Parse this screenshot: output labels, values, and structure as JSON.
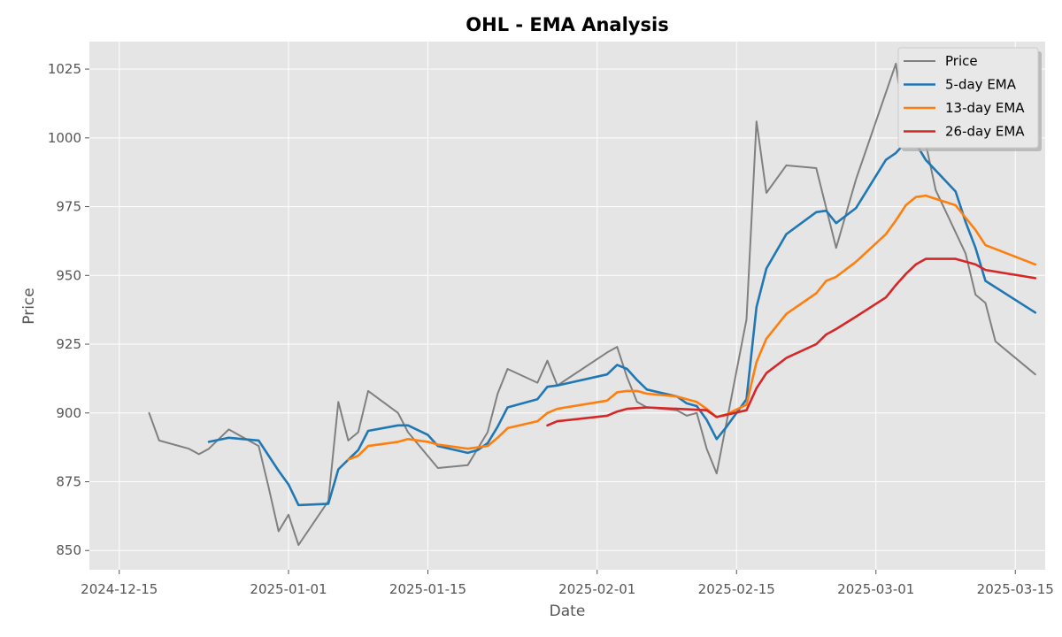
{
  "chart_data": {
    "type": "line",
    "title": "OHL - EMA Analysis",
    "xlabel": "Date",
    "ylabel": "Price",
    "xlim": [
      "2024-12-12",
      "2025-03-18"
    ],
    "ylim": [
      843,
      1035
    ],
    "grid": true,
    "legend_position": "top-right",
    "x_ticks": [
      "2024-12-15",
      "2025-01-01",
      "2025-01-15",
      "2025-02-01",
      "2025-02-15",
      "2025-03-01",
      "2025-03-15"
    ],
    "y_ticks": [
      850,
      875,
      900,
      925,
      950,
      975,
      1000,
      1025
    ],
    "series": [
      {
        "name": "Price",
        "color": "#808080",
        "points": [
          [
            "2024-12-18",
            900
          ],
          [
            "2024-12-19",
            890
          ],
          [
            "2024-12-22",
            887
          ],
          [
            "2024-12-23",
            885
          ],
          [
            "2024-12-24",
            887
          ],
          [
            "2024-12-26",
            894
          ],
          [
            "2024-12-29",
            888
          ],
          [
            "2024-12-30",
            873
          ],
          [
            "2024-12-31",
            857
          ],
          [
            "2025-01-01",
            863
          ],
          [
            "2025-01-02",
            852
          ],
          [
            "2025-01-05",
            868
          ],
          [
            "2025-01-06",
            904
          ],
          [
            "2025-01-07",
            890
          ],
          [
            "2025-01-08",
            893
          ],
          [
            "2025-01-09",
            908
          ],
          [
            "2025-01-12",
            900
          ],
          [
            "2025-01-13",
            893
          ],
          [
            "2025-01-16",
            880
          ],
          [
            "2025-01-19",
            881
          ],
          [
            "2025-01-21",
            893
          ],
          [
            "2025-01-22",
            907
          ],
          [
            "2025-01-23",
            916
          ],
          [
            "2025-01-26",
            911
          ],
          [
            "2025-01-27",
            919
          ],
          [
            "2025-01-28",
            910
          ],
          [
            "2025-02-02",
            922
          ],
          [
            "2025-02-03",
            924
          ],
          [
            "2025-02-04",
            913
          ],
          [
            "2025-02-05",
            904
          ],
          [
            "2025-02-06",
            902
          ],
          [
            "2025-02-09",
            901
          ],
          [
            "2025-02-10",
            899
          ],
          [
            "2025-02-11",
            900
          ],
          [
            "2025-02-12",
            887
          ],
          [
            "2025-02-13",
            878
          ],
          [
            "2025-02-16",
            934
          ],
          [
            "2025-02-17",
            1006
          ],
          [
            "2025-02-18",
            980
          ],
          [
            "2025-02-20",
            990
          ],
          [
            "2025-02-23",
            989
          ],
          [
            "2025-02-25",
            960
          ],
          [
            "2025-02-27",
            985
          ],
          [
            "2025-03-03",
            1027
          ],
          [
            "2025-03-04",
            1000
          ],
          [
            "2025-03-05",
            1006
          ],
          [
            "2025-03-06",
            998
          ],
          [
            "2025-03-07",
            981
          ],
          [
            "2025-03-10",
            958
          ],
          [
            "2025-03-11",
            943
          ],
          [
            "2025-03-12",
            940
          ],
          [
            "2025-03-13",
            926
          ],
          [
            "2025-03-17",
            914
          ]
        ]
      },
      {
        "name": "5-day EMA",
        "color": "#1f77b4",
        "points": [
          [
            "2024-12-24",
            889.5
          ],
          [
            "2024-12-26",
            891
          ],
          [
            "2024-12-29",
            890
          ],
          [
            "2024-12-30",
            884.5
          ],
          [
            "2024-12-31",
            879
          ],
          [
            "2025-01-01",
            874
          ],
          [
            "2025-01-02",
            866.5
          ],
          [
            "2025-01-05",
            867
          ],
          [
            "2025-01-06",
            879.5
          ],
          [
            "2025-01-07",
            883
          ],
          [
            "2025-01-08",
            886.5
          ],
          [
            "2025-01-09",
            893.5
          ],
          [
            "2025-01-12",
            895.5
          ],
          [
            "2025-01-13",
            895.5
          ],
          [
            "2025-01-15",
            892
          ],
          [
            "2025-01-16",
            888
          ],
          [
            "2025-01-19",
            885.5
          ],
          [
            "2025-01-20",
            886.5
          ],
          [
            "2025-01-21",
            889
          ],
          [
            "2025-01-22",
            895
          ],
          [
            "2025-01-23",
            902
          ],
          [
            "2025-01-26",
            905
          ],
          [
            "2025-01-27",
            909.5
          ],
          [
            "2025-01-28",
            910
          ],
          [
            "2025-02-02",
            914
          ],
          [
            "2025-02-03",
            917.5
          ],
          [
            "2025-02-04",
            916
          ],
          [
            "2025-02-05",
            912
          ],
          [
            "2025-02-06",
            908.5
          ],
          [
            "2025-02-09",
            906
          ],
          [
            "2025-02-10",
            903.5
          ],
          [
            "2025-02-11",
            902.5
          ],
          [
            "2025-02-12",
            897.5
          ],
          [
            "2025-02-13",
            890.5
          ],
          [
            "2025-02-14",
            895
          ],
          [
            "2025-02-16",
            905
          ],
          [
            "2025-02-17",
            938.5
          ],
          [
            "2025-02-18",
            952.5
          ],
          [
            "2025-02-20",
            965
          ],
          [
            "2025-02-23",
            973
          ],
          [
            "2025-02-24",
            973.5
          ],
          [
            "2025-02-25",
            969
          ],
          [
            "2025-02-27",
            974.5
          ],
          [
            "2025-03-02",
            992
          ],
          [
            "2025-03-03",
            994.5
          ],
          [
            "2025-03-04",
            998.5
          ],
          [
            "2025-03-05",
            998
          ],
          [
            "2025-03-06",
            992
          ],
          [
            "2025-03-09",
            980.5
          ],
          [
            "2025-03-10",
            969.5
          ],
          [
            "2025-03-11",
            960
          ],
          [
            "2025-03-12",
            948
          ],
          [
            "2025-03-17",
            936.5
          ]
        ]
      },
      {
        "name": "13-day EMA",
        "color": "#ff7f0e",
        "points": [
          [
            "2025-01-07",
            883
          ],
          [
            "2025-01-08",
            884.5
          ],
          [
            "2025-01-09",
            888
          ],
          [
            "2025-01-12",
            889.5
          ],
          [
            "2025-01-13",
            890.5
          ],
          [
            "2025-01-15",
            889.5
          ],
          [
            "2025-01-16",
            888.5
          ],
          [
            "2025-01-19",
            887
          ],
          [
            "2025-01-21",
            888
          ],
          [
            "2025-01-22",
            891
          ],
          [
            "2025-01-23",
            894.5
          ],
          [
            "2025-01-26",
            897
          ],
          [
            "2025-01-27",
            900
          ],
          [
            "2025-01-28",
            901.5
          ],
          [
            "2025-02-02",
            904.5
          ],
          [
            "2025-02-03",
            907.5
          ],
          [
            "2025-02-04",
            908
          ],
          [
            "2025-02-05",
            908
          ],
          [
            "2025-02-06",
            907
          ],
          [
            "2025-02-09",
            906
          ],
          [
            "2025-02-10",
            905
          ],
          [
            "2025-02-11",
            904
          ],
          [
            "2025-02-12",
            901.5
          ],
          [
            "2025-02-13",
            898.5
          ],
          [
            "2025-02-14",
            899.5
          ],
          [
            "2025-02-16",
            903
          ],
          [
            "2025-02-17",
            918.5
          ],
          [
            "2025-02-18",
            927
          ],
          [
            "2025-02-20",
            936
          ],
          [
            "2025-02-23",
            943.5
          ],
          [
            "2025-02-24",
            948
          ],
          [
            "2025-02-25",
            949.5
          ],
          [
            "2025-02-27",
            955
          ],
          [
            "2025-03-02",
            965
          ],
          [
            "2025-03-03",
            970
          ],
          [
            "2025-03-04",
            975.5
          ],
          [
            "2025-03-05",
            978.5
          ],
          [
            "2025-03-06",
            979
          ],
          [
            "2025-03-09",
            975.5
          ],
          [
            "2025-03-10",
            971
          ],
          [
            "2025-03-11",
            966.5
          ],
          [
            "2025-03-12",
            961
          ],
          [
            "2025-03-17",
            954
          ]
        ]
      },
      {
        "name": "26-day EMA",
        "color": "#d62728",
        "points": [
          [
            "2025-01-27",
            895.5
          ],
          [
            "2025-01-28",
            897
          ],
          [
            "2025-02-02",
            899
          ],
          [
            "2025-02-03",
            900.5
          ],
          [
            "2025-02-04",
            901.5
          ],
          [
            "2025-02-06",
            902
          ],
          [
            "2025-02-09",
            901.5
          ],
          [
            "2025-02-12",
            901
          ],
          [
            "2025-02-13",
            898.5
          ],
          [
            "2025-02-16",
            901
          ],
          [
            "2025-02-17",
            909
          ],
          [
            "2025-02-18",
            914.5
          ],
          [
            "2025-02-20",
            920
          ],
          [
            "2025-02-23",
            925
          ],
          [
            "2025-02-24",
            928.5
          ],
          [
            "2025-02-25",
            930.5
          ],
          [
            "2025-02-27",
            935
          ],
          [
            "2025-03-02",
            942
          ],
          [
            "2025-03-03",
            946.5
          ],
          [
            "2025-03-04",
            950.5
          ],
          [
            "2025-03-05",
            954
          ],
          [
            "2025-03-06",
            956
          ],
          [
            "2025-03-09",
            956
          ],
          [
            "2025-03-10",
            955
          ],
          [
            "2025-03-11",
            954
          ],
          [
            "2025-03-12",
            952
          ],
          [
            "2025-03-17",
            949
          ]
        ]
      }
    ]
  }
}
